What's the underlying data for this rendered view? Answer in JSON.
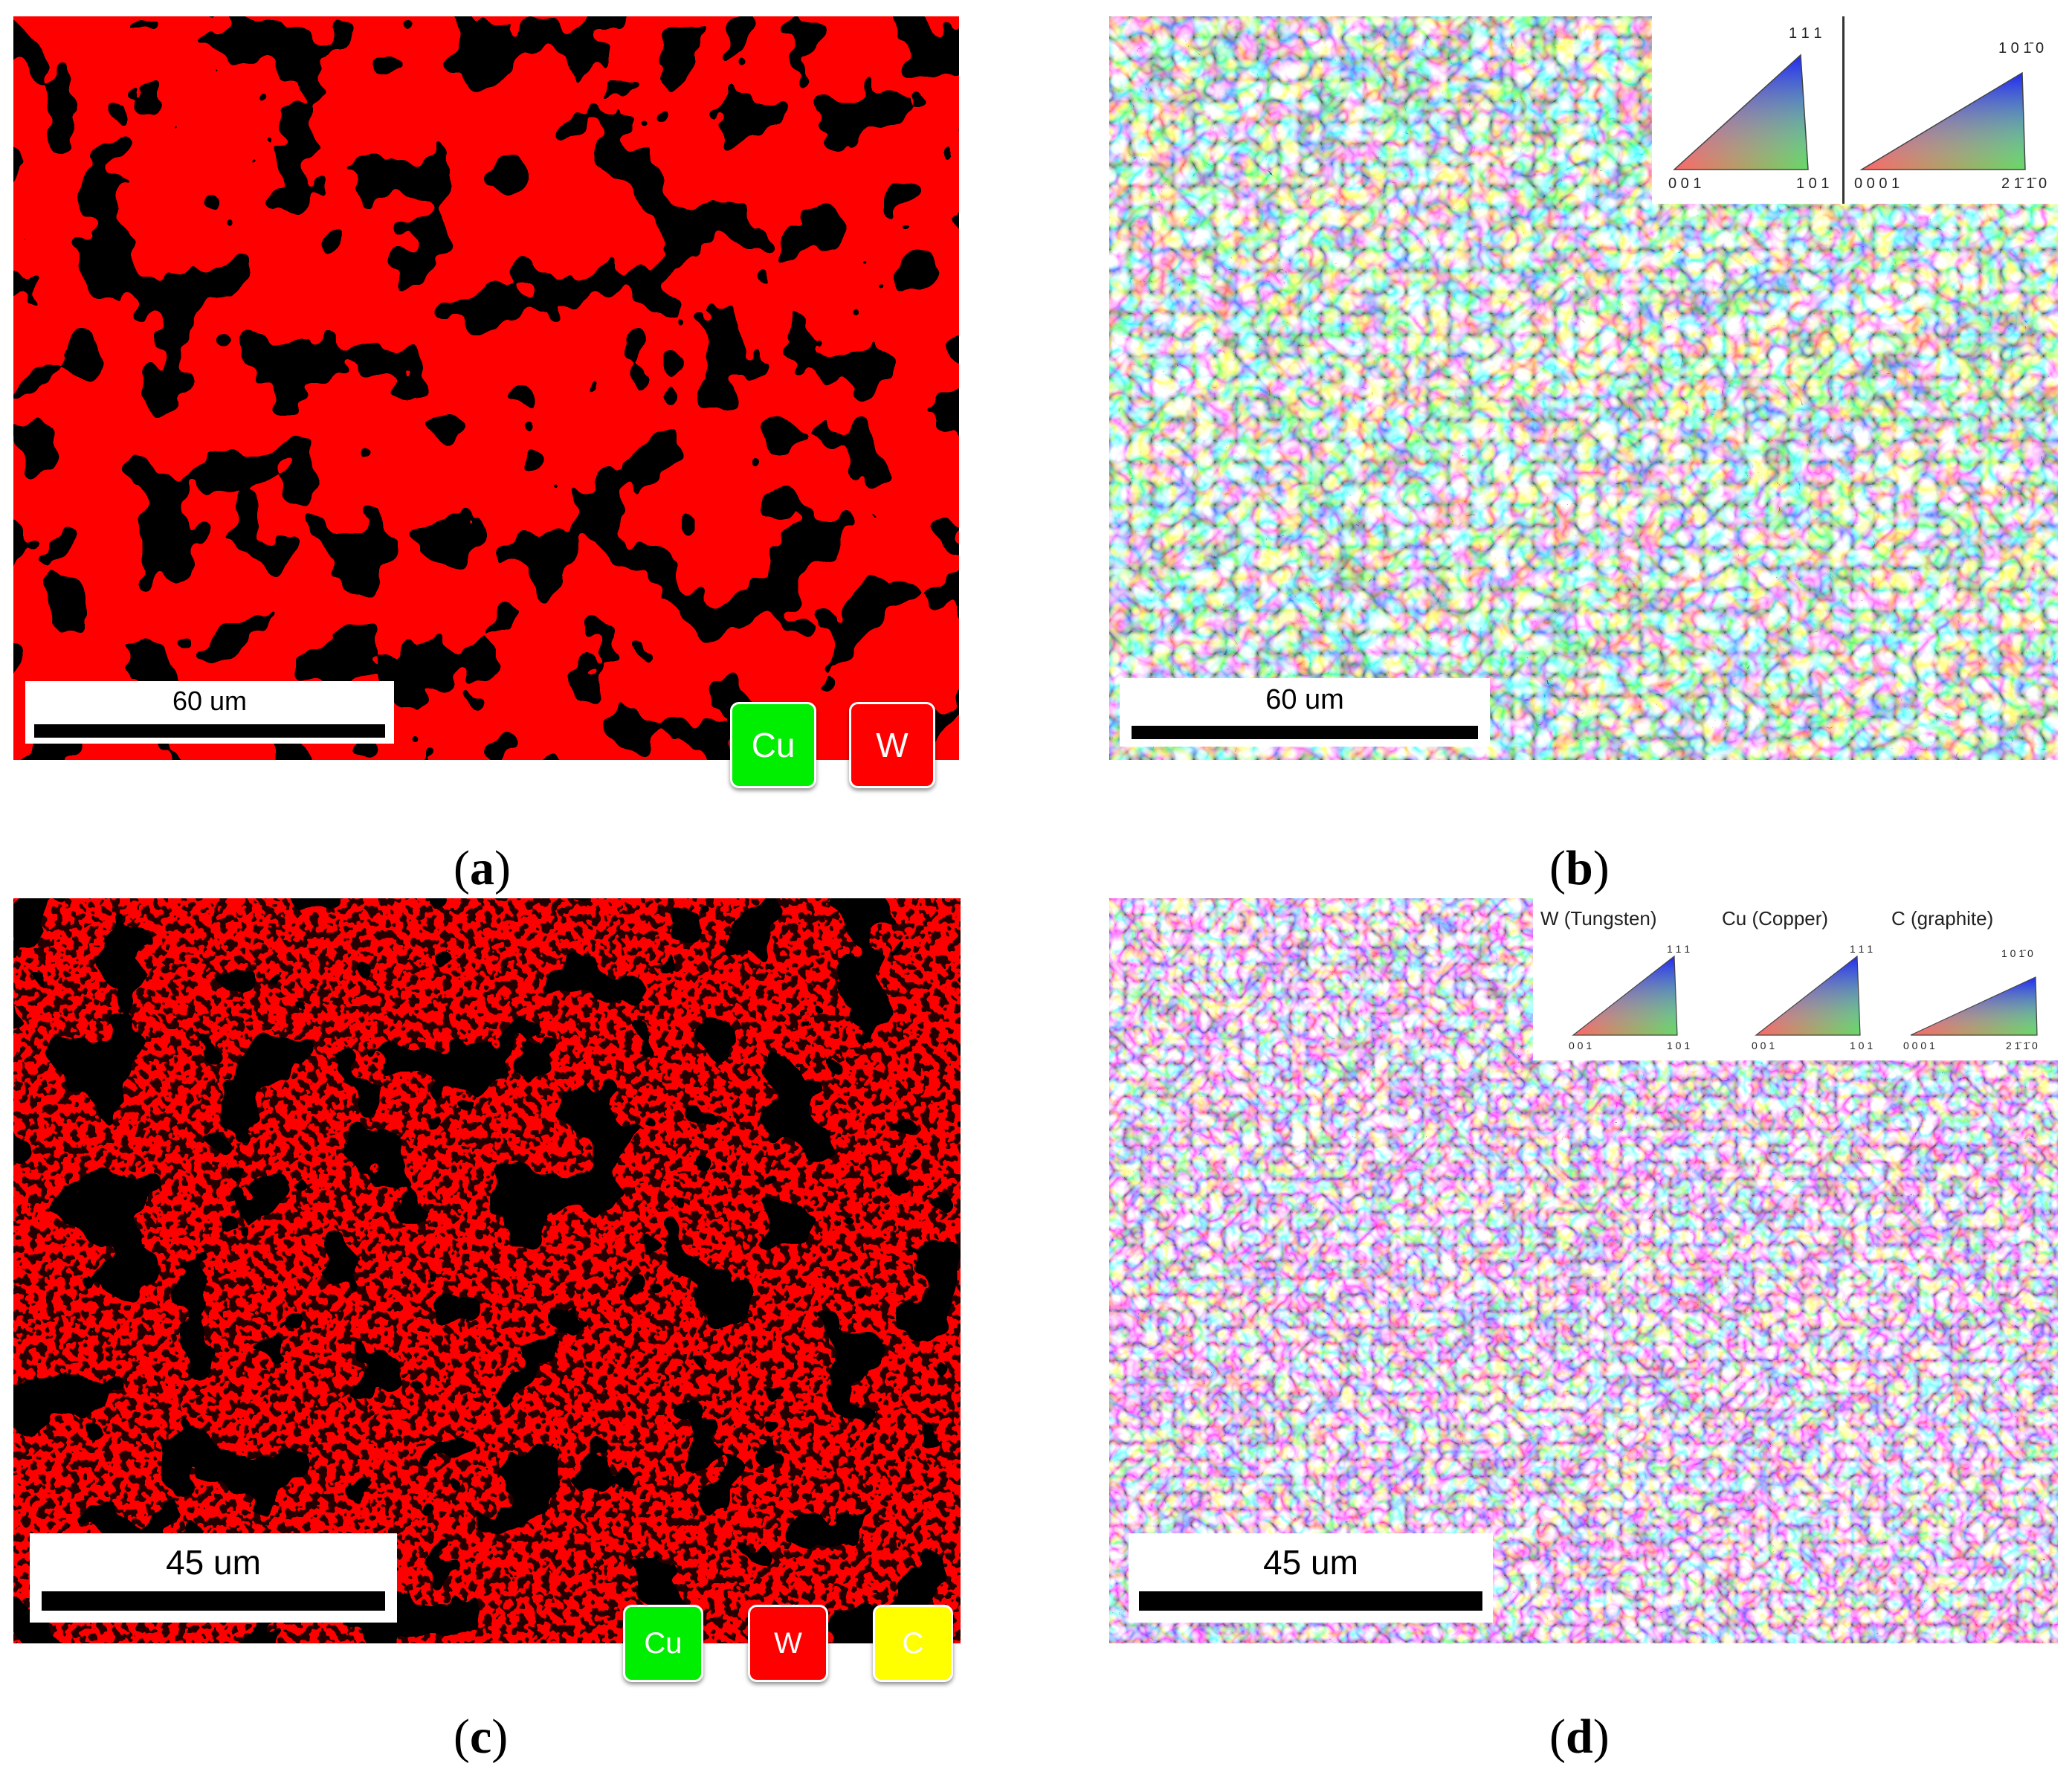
{
  "panels": {
    "a": {
      "caption_letter": "a",
      "scale_label": "60 um",
      "phases": [
        {
          "symbol": "Cu",
          "color": "#00ee00"
        },
        {
          "symbol": "W",
          "color": "#ff0000"
        }
      ]
    },
    "b": {
      "caption_letter": "b",
      "scale_label": "60 um",
      "ipf_legend": {
        "cubic": {
          "top": "1 1 1",
          "left": "0 0 1",
          "right": "1 0 1"
        },
        "hex": {
          "top": "1 0 1̄ 0",
          "left": "0 0 0 1",
          "right": "2 1̄ 1̄ 0"
        }
      }
    },
    "c": {
      "caption_letter": "c",
      "scale_label": "45 um",
      "phases": [
        {
          "symbol": "Cu",
          "color": "#00ee00"
        },
        {
          "symbol": "W",
          "color": "#ff0000"
        },
        {
          "symbol": "C",
          "color": "#ffff00"
        }
      ]
    },
    "d": {
      "caption_letter": "d",
      "scale_label": "45 um",
      "ipf_legend": {
        "w": {
          "title": "W (Tungsten)",
          "top": "1 1 1",
          "left": "0 0 1",
          "right": "1 0 1"
        },
        "cu": {
          "title": "Cu (Copper)",
          "top": "1 1 1",
          "left": "0 0 1",
          "right": "1 0 1"
        },
        "c": {
          "title": "C (graphite)",
          "top": "1 0 1̄ 0",
          "left": "0 0 0 1",
          "right": "2 1̄ 1̄ 0"
        }
      }
    }
  },
  "colors": {
    "copper_phase": "#00ee00",
    "tungsten_phase": "#ff0000",
    "graphite_phase": "#ffff00"
  }
}
